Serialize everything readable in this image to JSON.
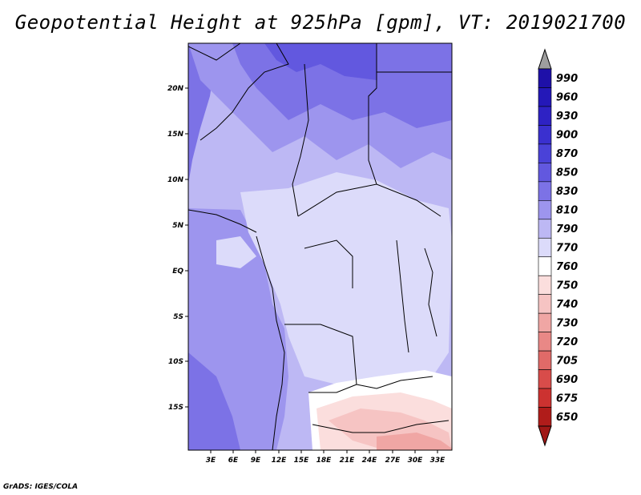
{
  "title": "Geopotential Height at 925hPa [gpm], VT: 2019021700",
  "credit": "GrADS: IGES/COLA",
  "lat_ticks": [
    "20N",
    "15N",
    "10N",
    "5N",
    "EQ",
    "5S",
    "10S",
    "15S"
  ],
  "lon_ticks": [
    "3E",
    "6E",
    "9E",
    "12E",
    "15E",
    "18E",
    "21E",
    "24E",
    "27E",
    "30E",
    "33E"
  ],
  "colorbar": {
    "levels": [
      {
        "label": "990",
        "color": "#1e10a8"
      },
      {
        "label": "960",
        "color": "#2418b8"
      },
      {
        "label": "930",
        "color": "#2e22c4"
      },
      {
        "label": "900",
        "color": "#3a30cf"
      },
      {
        "label": "870",
        "color": "#4a42d8"
      },
      {
        "label": "850",
        "color": "#6258df"
      },
      {
        "label": "830",
        "color": "#7c72e6"
      },
      {
        "label": "810",
        "color": "#9d95ee"
      },
      {
        "label": "790",
        "color": "#bdb8f4"
      },
      {
        "label": "770",
        "color": "#dcdbfa"
      },
      {
        "label": "760",
        "color": "#ffffff"
      },
      {
        "label": "750",
        "color": "#fbdedd"
      },
      {
        "label": "740",
        "color": "#f6c4c3"
      },
      {
        "label": "730",
        "color": "#f0a6a4"
      },
      {
        "label": "720",
        "color": "#e98886"
      },
      {
        "label": "705",
        "color": "#e06a68"
      },
      {
        "label": "690",
        "color": "#d84c4a"
      },
      {
        "label": "675",
        "color": "#cc3230"
      },
      {
        "label": "650",
        "color": "#b01c1a"
      }
    ],
    "over_color": "#9e9e9e",
    "under_color": "#a01816"
  }
}
